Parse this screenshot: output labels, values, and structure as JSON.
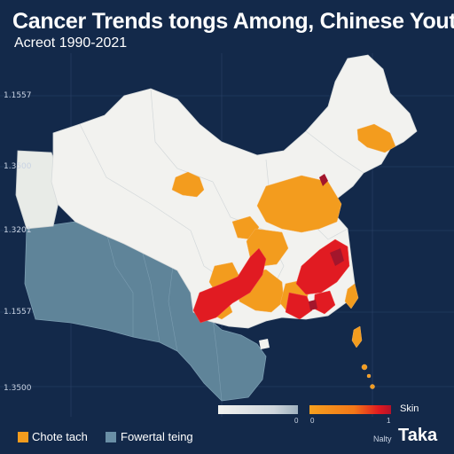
{
  "title": "Cancer Trends tongs Among, Chinese Youth,",
  "subtitle": "Acreot 1990-2021",
  "y_labels": [
    "1.1557",
    "1.3500",
    "1.3201",
    "1.1557",
    "1.3500"
  ],
  "legend": {
    "gradient_ticks": [
      "0",
      "0",
      "1"
    ],
    "skin_label": "Skin",
    "items": [
      {
        "label": "Chote tach",
        "color": "#f39c1e"
      },
      {
        "label": "Fowertal teing",
        "color": "#6a8fa6"
      }
    ]
  },
  "brand": {
    "small": "Nalty",
    "big": "Taka"
  },
  "colors": {
    "background": "#13294a",
    "land_white": "#f2f2ef",
    "neighbor_blue": "#5f8499",
    "orange": "#f39c1e",
    "red": "#e11b22",
    "dark_red": "#a3162c"
  }
}
